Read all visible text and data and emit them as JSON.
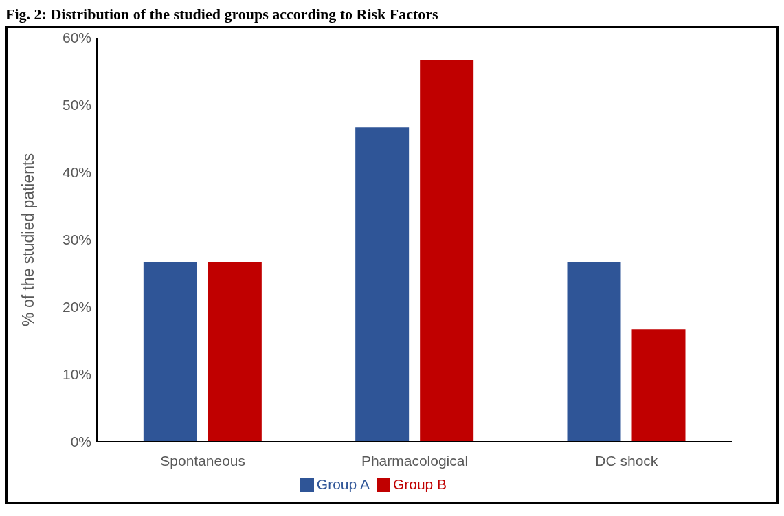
{
  "chart_data": {
    "type": "bar",
    "title": "Fig. 2: Distribution of the studied groups according to Risk Factors",
    "ylabel": "% of the studied patients",
    "categories": [
      "Spontaneous",
      "Pharmacological",
      "DC shock"
    ],
    "series": [
      {
        "name": "Group A",
        "color": "#2f5597",
        "values": [
          26.7,
          46.7,
          26.7
        ]
      },
      {
        "name": "Group B",
        "color": "#c00000",
        "values": [
          26.7,
          56.7,
          16.7
        ]
      }
    ],
    "ylim": [
      0,
      60
    ],
    "yticks": [
      {
        "value": 0,
        "label": "0%"
      },
      {
        "value": 10,
        "label": "10%"
      },
      {
        "value": 20,
        "label": "20%"
      },
      {
        "value": 30,
        "label": "30%"
      },
      {
        "value": 40,
        "label": "40%"
      },
      {
        "value": 50,
        "label": "50%"
      },
      {
        "value": 60,
        "label": "60%"
      }
    ],
    "grid": false,
    "legend": "bottom"
  }
}
